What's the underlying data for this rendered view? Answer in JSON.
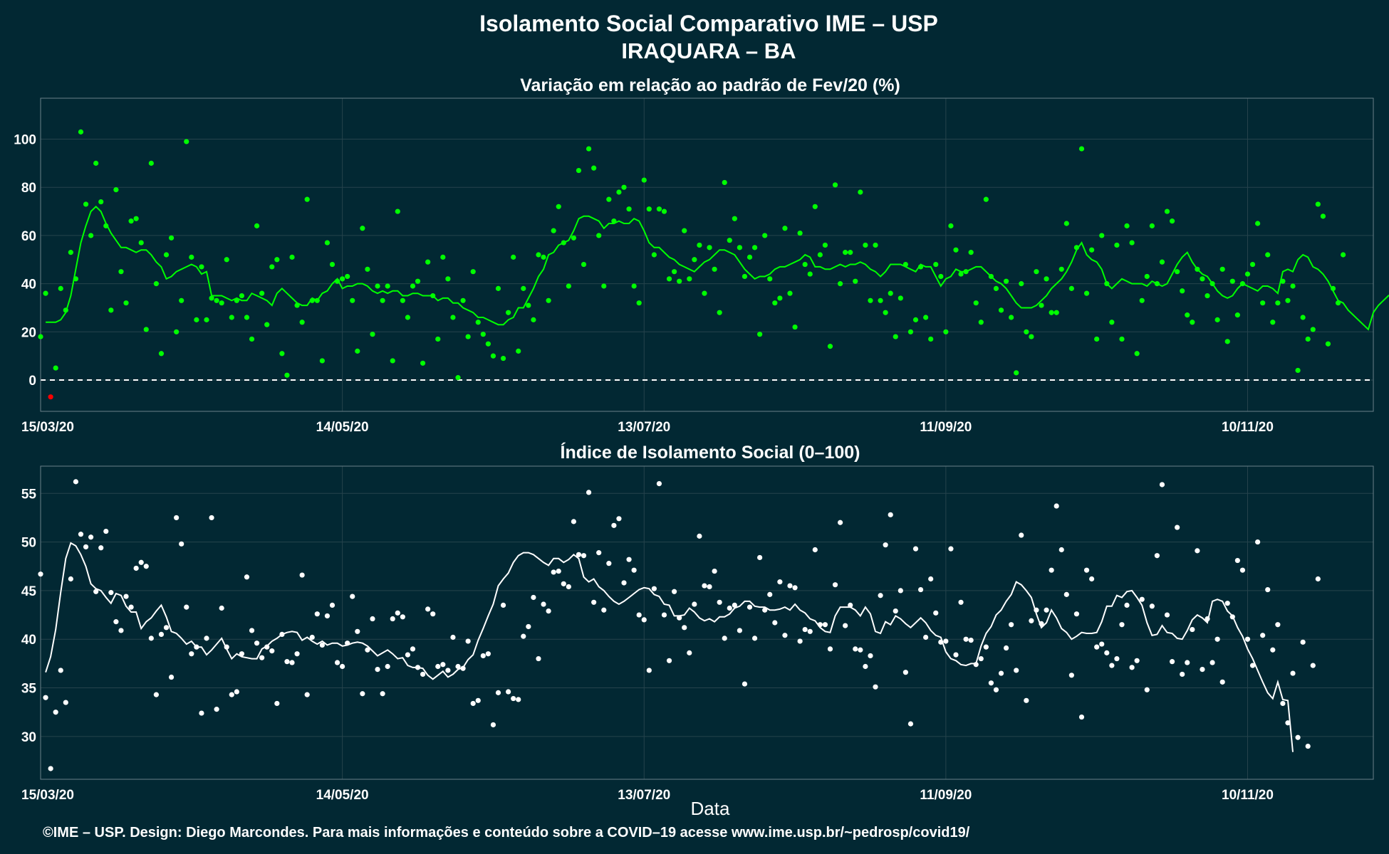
{
  "header": {
    "title": "Isolamento Social Comparativo IME – USP",
    "subtitle": "IRAQUARA – BA"
  },
  "footer": {
    "xlabel": "Data",
    "credit": "©IME – USP. Design: Diego Marcondes. Para mais informações e conteúdo sobre a COVID–19 acesse www.ime.usp.br/~pedrosp/covid19/"
  },
  "colors": {
    "background": "#022833",
    "points_top": "#00ff00",
    "line_top": "#00ff00",
    "negative_point": "#ff0000",
    "points_bottom": "#ffffff",
    "line_bottom": "#ffffff"
  },
  "chart_data": [
    {
      "type": "scatter",
      "title": "Variação em relação ao padrão de Fev/20 (%)",
      "x_tick_labels": [
        "15/03/20",
        "14/05/20",
        "13/07/20",
        "11/09/20",
        "10/11/20"
      ],
      "x_tick_days": [
        0,
        60,
        120,
        180,
        240
      ],
      "y_ticks": [
        0,
        20,
        40,
        60,
        80,
        100
      ],
      "ylim": [
        -13,
        117
      ],
      "xlim": [
        0,
        265
      ],
      "reference_line": 0,
      "grid": true,
      "points": [
        {
          "name": "variação diária",
          "values": [
            18,
            36,
            -7,
            5,
            38,
            29,
            53,
            42,
            103,
            73,
            60,
            90,
            74,
            64,
            29,
            79,
            45,
            32,
            66,
            67,
            57,
            21,
            90,
            40,
            11,
            52,
            59,
            20,
            33,
            99,
            51,
            25,
            47,
            25,
            34,
            33,
            32,
            50,
            26,
            33,
            35,
            26,
            17,
            64,
            36,
            23,
            47,
            50,
            11,
            2,
            51,
            31,
            24,
            75,
            33,
            33,
            8,
            57,
            48,
            41,
            42,
            43,
            33,
            12,
            63,
            46,
            19,
            39,
            33,
            39,
            8,
            70,
            33,
            26,
            39,
            41,
            7,
            49,
            35,
            17,
            51,
            42,
            26,
            1,
            33,
            18,
            45,
            24,
            19,
            15,
            10,
            38,
            9,
            28,
            51,
            12,
            38,
            31,
            25,
            52,
            51,
            33,
            62,
            72,
            57,
            39,
            59,
            87,
            48,
            96,
            88,
            60,
            39,
            75,
            66,
            78,
            80,
            71,
            39,
            32,
            83,
            71,
            52,
            71,
            70,
            42,
            45,
            41,
            62,
            42,
            50,
            56,
            36,
            55,
            46,
            28,
            82,
            58,
            67,
            55,
            43,
            51,
            55,
            19,
            60,
            42,
            32,
            34,
            63,
            36,
            22,
            61,
            48,
            44,
            72,
            52,
            56,
            14,
            81,
            40,
            53,
            53,
            41,
            78,
            56,
            33,
            56,
            33,
            28,
            36,
            18,
            34,
            48,
            20,
            25,
            47,
            26,
            17,
            48,
            43,
            20,
            64,
            54,
            44,
            45,
            53,
            32,
            24,
            75,
            43,
            38,
            29,
            41,
            26,
            3,
            40,
            20,
            18,
            45,
            31,
            42,
            28,
            28,
            46,
            65,
            38,
            55,
            96,
            36,
            54,
            17,
            60,
            40,
            24,
            56,
            17,
            64,
            57,
            11,
            33,
            43,
            64,
            40,
            49,
            70,
            66,
            45,
            37,
            27,
            24,
            46,
            42,
            35,
            40,
            25,
            46,
            16,
            41,
            27,
            40,
            44,
            48,
            65,
            32,
            52,
            24,
            32,
            41,
            33,
            39,
            4,
            26,
            17,
            21,
            73,
            68,
            15,
            38,
            32,
            52
          ]
        },
        {
          "name": "média móvel",
          "values": [
            24,
            24,
            24,
            25,
            28,
            35,
            46,
            57,
            64,
            70,
            72,
            70,
            65,
            61,
            58,
            55,
            55,
            54,
            53,
            54,
            54,
            52,
            49,
            47,
            42,
            43,
            45,
            46,
            47,
            48,
            47,
            44,
            45,
            35,
            35,
            35,
            34,
            33,
            34,
            33,
            33,
            36,
            35,
            34,
            33,
            31,
            36,
            38,
            36,
            34,
            32,
            31,
            31,
            34,
            33,
            36,
            37,
            40,
            42,
            38,
            39,
            39,
            40,
            40,
            39,
            37,
            36,
            37,
            36,
            37,
            37,
            35,
            35,
            36,
            36,
            35,
            35,
            35,
            33,
            34,
            34,
            32,
            32,
            30,
            29,
            28,
            26,
            26,
            25,
            24,
            23,
            23,
            25,
            26,
            30,
            30,
            34,
            38,
            43,
            46,
            52,
            53,
            56,
            57,
            58,
            62,
            67,
            68,
            68,
            67,
            66,
            63,
            65,
            65,
            66,
            65,
            65,
            67,
            66,
            62,
            57,
            55,
            55,
            53,
            51,
            50,
            48,
            47,
            46,
            45,
            47,
            49,
            50,
            52,
            54,
            54,
            53,
            52,
            49,
            46,
            44,
            42,
            43,
            43,
            44,
            46,
            47,
            47,
            48,
            49,
            50,
            52,
            51,
            47,
            47,
            46,
            46,
            47,
            48,
            47,
            48,
            48,
            49,
            48,
            46,
            45,
            43,
            45,
            48,
            48,
            48,
            47,
            46,
            45,
            48,
            47,
            47,
            43,
            39,
            42,
            43,
            46,
            45,
            45,
            46,
            47,
            47,
            45,
            43,
            41,
            40,
            38,
            35,
            32,
            30,
            30,
            30,
            31,
            33,
            35,
            38,
            40,
            42,
            45,
            49,
            54,
            57,
            52,
            50,
            49,
            46,
            40,
            38,
            40,
            42,
            41,
            40,
            40,
            40,
            39,
            41,
            40,
            39,
            40,
            44,
            48,
            51,
            53,
            49,
            46,
            44,
            43,
            40,
            37,
            35,
            34,
            35,
            38,
            40,
            39,
            38,
            37,
            39,
            39,
            38,
            36,
            45,
            46,
            45,
            50,
            52,
            51,
            47,
            46,
            44,
            41,
            37,
            33,
            32,
            29,
            27,
            25,
            23,
            21,
            28,
            31,
            33,
            35,
            36,
            37
          ]
        }
      ]
    },
    {
      "type": "scatter",
      "title": "Índice de Isolamento Social (0–100)",
      "x_tick_labels": [
        "15/03/20",
        "14/05/20",
        "13/07/20",
        "11/09/20",
        "10/11/20"
      ],
      "x_tick_days": [
        0,
        60,
        120,
        180,
        240
      ],
      "y_ticks": [
        30,
        35,
        40,
        45,
        50,
        55
      ],
      "ylim": [
        25.6,
        57.8
      ],
      "xlim": [
        0,
        265
      ],
      "grid": true,
      "points": [
        {
          "name": "índice diário",
          "values": [
            46.7,
            34,
            26.7,
            32.5,
            36.8,
            33.5,
            46.2,
            56.2,
            50.8,
            49.5,
            50.5,
            44.9,
            49.4,
            51.1,
            44.8,
            41.8,
            40.9,
            44.4,
            43.3,
            47.3,
            47.9,
            47.5,
            40.1,
            34.3,
            40.5,
            41.2,
            36.1,
            52.5,
            49.8,
            43.3,
            38.5,
            39.2,
            32.4,
            40.1,
            52.5,
            32.8,
            43.2,
            39.2,
            34.3,
            34.6,
            38.5,
            46.4,
            40.9,
            39.6,
            38.1,
            39.2,
            38.8,
            33.4,
            40.5,
            37.7,
            37.6,
            38.5,
            46.6,
            34.3,
            40.2,
            42.6,
            39.4,
            42.4,
            43.5,
            37.6,
            37.2,
            39.6,
            44.4,
            40.8,
            34.4,
            38.9,
            42.1,
            36.9,
            34.4,
            37.2,
            42.1,
            42.7,
            42.3,
            38.4,
            39,
            37.1,
            36.4,
            43.1,
            42.6,
            37.2,
            37.4,
            36.8,
            40.2,
            37.2,
            37,
            39.8,
            33.4,
            33.7,
            38.3,
            38.5,
            31.2,
            34.5,
            43.5,
            34.6,
            33.9,
            33.8,
            40.3,
            41.3,
            44.3,
            38,
            43.6,
            42.9,
            46.9,
            47,
            45.7,
            45.4,
            52.1,
            48.7,
            48.6,
            55.1,
            43.8,
            48.9,
            43,
            47.8,
            51.7,
            52.4,
            45.8,
            48.2,
            47.1,
            42.5,
            42,
            36.8,
            45.2,
            56,
            42.5,
            37.8,
            44.9,
            42.2,
            41.2,
            38.6,
            43.6,
            50.6,
            45.5,
            45.4,
            47,
            43.8,
            40.1,
            43.2,
            43.5,
            40.9,
            35.4,
            43.3,
            40.1,
            48.4,
            43,
            44.6,
            41.7,
            45.9,
            40.4,
            45.5,
            45.3,
            39.8,
            41,
            40.8,
            49.2,
            41.5,
            41.5,
            39,
            45.6,
            52,
            41.4,
            43.5,
            39,
            38.9,
            37.2,
            38.3,
            35.1,
            44.5,
            49.7,
            52.8,
            42.9,
            45,
            36.6,
            31.3,
            49.3,
            45.1,
            40.2,
            46.2,
            42.7,
            39.7,
            39.8,
            49.3,
            38.4,
            43.8,
            40,
            39.9,
            37.4,
            38,
            39.2,
            35.5,
            34.8,
            36.5,
            39.1,
            41.5,
            36.8,
            50.7,
            33.7,
            41.9,
            43,
            41.6,
            43,
            47.1,
            53.7,
            49.2,
            44.6,
            36.3,
            42.6,
            32,
            47.1,
            46.2,
            39.2,
            39.5,
            38.6,
            37.3,
            38,
            41.5,
            43.5,
            37.1,
            37.8,
            44.1,
            34.8,
            43.4,
            48.6,
            55.9,
            42.5,
            37.7,
            51.5,
            36.4,
            37.6,
            41,
            49.1,
            36.9,
            42.1,
            37.6,
            40,
            35.6,
            43.7,
            42.3,
            48.1,
            47.1,
            40,
            37.3,
            50,
            40.4,
            45.1,
            38.9,
            41.5,
            33.4,
            31.4,
            36.5,
            29.9,
            39.7,
            29,
            37.3,
            46.2
          ]
        },
        {
          "name": "média móvel",
          "values": [
            36.6,
            38.2,
            41,
            44.8,
            48.3,
            49.9,
            49.6,
            48.7,
            47.5,
            45.7,
            45.2,
            45,
            44.3,
            43.7,
            44.7,
            44.5,
            43.4,
            42.8,
            42.8,
            41.1,
            41.8,
            42.2,
            42.9,
            43.5,
            42.3,
            40.8,
            40.6,
            40.1,
            39.5,
            39.8,
            39.2,
            39.2,
            38.4,
            38.9,
            39.5,
            40.1,
            39,
            38,
            38.5,
            38.2,
            38.1,
            38,
            38,
            39,
            39.3,
            39.8,
            40.1,
            40.5,
            40.7,
            40.8,
            40.7,
            39.9,
            40.2,
            39.8,
            39.5,
            39.8,
            39.4,
            39.6,
            39.6,
            39.3,
            39.4,
            39.6,
            39.7,
            39.6,
            39.3,
            38.8,
            38.3,
            38.6,
            38.9,
            38.5,
            38,
            38.1,
            37.3,
            37.1,
            37.1,
            37,
            36.3,
            35.9,
            36.3,
            36.7,
            36.1,
            36.4,
            36.9,
            37.1,
            37.9,
            38.4,
            39.9,
            41.1,
            42.4,
            43.6,
            45.5,
            46.2,
            46.8,
            47.9,
            48.6,
            48.9,
            48.9,
            48.7,
            48.3,
            47.9,
            47.6,
            48.3,
            48.3,
            47.9,
            48.2,
            48.7,
            48.3,
            46.4,
            45.9,
            46.2,
            45.4,
            45,
            44.4,
            43.9,
            43.6,
            43.9,
            44.3,
            44.7,
            45.1,
            45.3,
            45.2,
            44.6,
            44.4,
            43.6,
            43.5,
            42.4,
            42.4,
            42.5,
            43.2,
            42.8,
            42.2,
            41.9,
            42.1,
            41.8,
            42.3,
            42.3,
            42.6,
            43.2,
            43.4,
            43.9,
            43.9,
            43.4,
            43.3,
            43.3,
            43,
            43,
            43.1,
            43.3,
            43,
            43.6,
            43,
            42.7,
            42.1,
            41.9,
            41.2,
            40.8,
            40.7,
            42.4,
            43.3,
            43.3,
            43.3,
            43,
            42.4,
            43.3,
            42.6,
            40.8,
            40.6,
            41.8,
            41.5,
            42.4,
            42.1,
            41.6,
            41.2,
            41.7,
            42.2,
            41.7,
            40.9,
            40.4,
            40.2,
            38.7,
            38,
            37.8,
            37.4,
            37.3,
            37.5,
            37.5,
            39.3,
            40.6,
            41.3,
            42.5,
            43,
            43.9,
            44.6,
            45.9,
            45.6,
            45,
            44.3,
            42.6,
            41.2,
            41.7,
            43,
            42.2,
            41.1,
            40.7,
            40,
            40.3,
            40.7,
            40.6,
            40.6,
            40.7,
            41.8,
            43.4,
            43.4,
            44.5,
            44.3,
            44.9,
            45,
            44.3,
            43.5,
            41.7,
            40.4,
            40.5,
            41.4,
            40.7,
            40.6,
            40.1,
            40,
            40.9,
            42,
            42.5,
            42.2,
            41.7,
            43.9,
            44.1,
            43.9,
            42.9,
            42.4,
            41.2,
            40.3,
            39,
            38,
            36.8,
            35.6,
            34.5,
            33.9,
            35.6,
            33.8,
            33.7,
            28.4
          ]
        }
      ]
    }
  ]
}
